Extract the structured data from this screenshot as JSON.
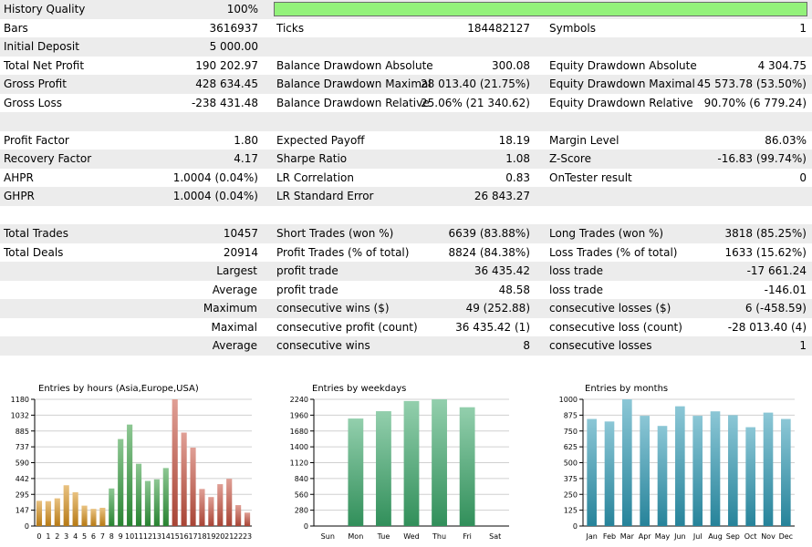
{
  "rows": [
    {
      "shade": true,
      "cells": [
        "History Quality",
        "100%",
        "",
        "",
        "",
        ""
      ],
      "quality_bar": 1.0
    },
    {
      "shade": false,
      "cells": [
        "Bars",
        "3616937",
        "Ticks",
        "184482127",
        "Symbols",
        "1"
      ]
    },
    {
      "shade": true,
      "cells": [
        "Initial Deposit",
        "5 000.00",
        "",
        "",
        "",
        ""
      ]
    },
    {
      "shade": false,
      "cells": [
        "Total Net Profit",
        "190 202.97",
        "Balance Drawdown Absolute",
        "300.08",
        "Equity Drawdown Absolute",
        "4 304.75"
      ]
    },
    {
      "shade": true,
      "cells": [
        "Gross Profit",
        "428 634.45",
        "Balance Drawdown Maximal",
        "28 013.40 (21.75%)",
        "Equity Drawdown Maximal",
        "45 573.78 (53.50%)"
      ]
    },
    {
      "shade": false,
      "cells": [
        "Gross Loss",
        "-238 431.48",
        "Balance Drawdown Relative",
        "25.06% (21 340.62)",
        "Equity Drawdown Relative",
        "90.70% (6 779.24)"
      ]
    },
    {
      "shade": true,
      "cells": [
        "",
        "",
        "",
        "",
        "",
        ""
      ]
    },
    {
      "shade": false,
      "cells": [
        "Profit Factor",
        "1.80",
        "Expected Payoff",
        "18.19",
        "Margin Level",
        "86.03%"
      ]
    },
    {
      "shade": true,
      "cells": [
        "Recovery Factor",
        "4.17",
        "Sharpe Ratio",
        "1.08",
        "Z-Score",
        "-16.83 (99.74%)"
      ]
    },
    {
      "shade": false,
      "cells": [
        "AHPR",
        "1.0004 (0.04%)",
        "LR Correlation",
        "0.83",
        "OnTester result",
        "0"
      ]
    },
    {
      "shade": true,
      "cells": [
        "GHPR",
        "1.0004 (0.04%)",
        "LR Standard Error",
        "26 843.27",
        "",
        ""
      ]
    },
    {
      "shade": false,
      "cells": [
        "",
        "",
        "",
        "",
        "",
        ""
      ]
    },
    {
      "shade": true,
      "cells": [
        "Total Trades",
        "10457",
        "Short Trades (won %)",
        "6639 (83.88%)",
        "Long Trades (won %)",
        "3818 (85.25%)"
      ]
    },
    {
      "shade": false,
      "cells": [
        "Total Deals",
        "20914",
        "Profit Trades (% of total)",
        "8824 (84.38%)",
        "Loss Trades (% of total)",
        "1633 (15.62%)"
      ]
    },
    {
      "shade": true,
      "right": "Largest",
      "cells": [
        "",
        "",
        "profit trade",
        "36 435.42",
        "loss trade",
        "-17 661.24"
      ]
    },
    {
      "shade": false,
      "right": "Average",
      "cells": [
        "",
        "",
        "profit trade",
        "48.58",
        "loss trade",
        "-146.01"
      ]
    },
    {
      "shade": true,
      "right": "Maximum",
      "cells": [
        "",
        "",
        "consecutive wins ($)",
        "49 (252.88)",
        "consecutive losses ($)",
        "6 (-458.59)"
      ]
    },
    {
      "shade": false,
      "right": "Maximal",
      "cells": [
        "",
        "",
        "consecutive profit (count)",
        "36 435.42 (1)",
        "consecutive loss (count)",
        "-28 013.40 (4)"
      ]
    },
    {
      "shade": true,
      "right": "Average",
      "cells": [
        "",
        "",
        "consecutive wins",
        "8",
        "consecutive losses",
        "1"
      ]
    }
  ],
  "chart_data": [
    {
      "type": "bar",
      "title": "Entries by hours (Asia,Europe,USA)",
      "categories": [
        "0",
        "1",
        "2",
        "3",
        "4",
        "5",
        "6",
        "7",
        "8",
        "9",
        "10",
        "11",
        "12",
        "13",
        "14",
        "15",
        "16",
        "17",
        "18",
        "19",
        "20",
        "21",
        "22",
        "23"
      ],
      "values": [
        235,
        232,
        258,
        380,
        315,
        190,
        160,
        170,
        350,
        810,
        945,
        580,
        420,
        435,
        540,
        1180,
        870,
        730,
        345,
        270,
        390,
        440,
        195,
        125
      ],
      "yticks": [
        "1180",
        "1032",
        "885",
        "737",
        "590",
        "442",
        "295",
        "147",
        "0"
      ],
      "ylim": [
        0,
        1180
      ],
      "colors": [
        "#d79019",
        "#d79019",
        "#d79019",
        "#d79019",
        "#d79019",
        "#d79019",
        "#d79019",
        "#d79019",
        "#2f9a3a",
        "#2f9a3a",
        "#2f9a3a",
        "#2f9a3a",
        "#2f9a3a",
        "#2f9a3a",
        "#2f9a3a",
        "#c6503e",
        "#c6503e",
        "#c6503e",
        "#c6503e",
        "#c6503e",
        "#c6503e",
        "#c6503e",
        "#c6503e",
        "#c6503e"
      ],
      "grid": true
    },
    {
      "type": "bar",
      "title": "Entries by weekdays",
      "categories": [
        "Sun",
        "Mon",
        "Tue",
        "Wed",
        "Thu",
        "Fri",
        "Sat"
      ],
      "values": [
        0,
        1900,
        2030,
        2210,
        2240,
        2100,
        0
      ],
      "yticks": [
        "2240",
        "1960",
        "1680",
        "1400",
        "1120",
        "840",
        "560",
        "280",
        "0"
      ],
      "ylim": [
        0,
        2240
      ],
      "colors": [
        "#3aa86a",
        "#3aa86a",
        "#3aa86a",
        "#3aa86a",
        "#3aa86a",
        "#3aa86a",
        "#3aa86a"
      ],
      "grid": true
    },
    {
      "type": "bar",
      "title": "Entries by months",
      "categories": [
        "Jan",
        "Feb",
        "Mar",
        "Apr",
        "May",
        "Jun",
        "Jul",
        "Aug",
        "Sep",
        "Oct",
        "Nov",
        "Dec"
      ],
      "values": [
        845,
        825,
        1000,
        870,
        790,
        945,
        870,
        905,
        875,
        780,
        895,
        845
      ],
      "yticks": [
        "1000",
        "875",
        "750",
        "625",
        "500",
        "375",
        "250",
        "125",
        "0"
      ],
      "ylim": [
        0,
        1000
      ],
      "colors": [
        "#2d9ab5",
        "#2d9ab5",
        "#2d9ab5",
        "#2d9ab5",
        "#2d9ab5",
        "#2d9ab5",
        "#2d9ab5",
        "#2d9ab5",
        "#2d9ab5",
        "#2d9ab5",
        "#2d9ab5",
        "#2d9ab5"
      ],
      "grid": true
    }
  ]
}
